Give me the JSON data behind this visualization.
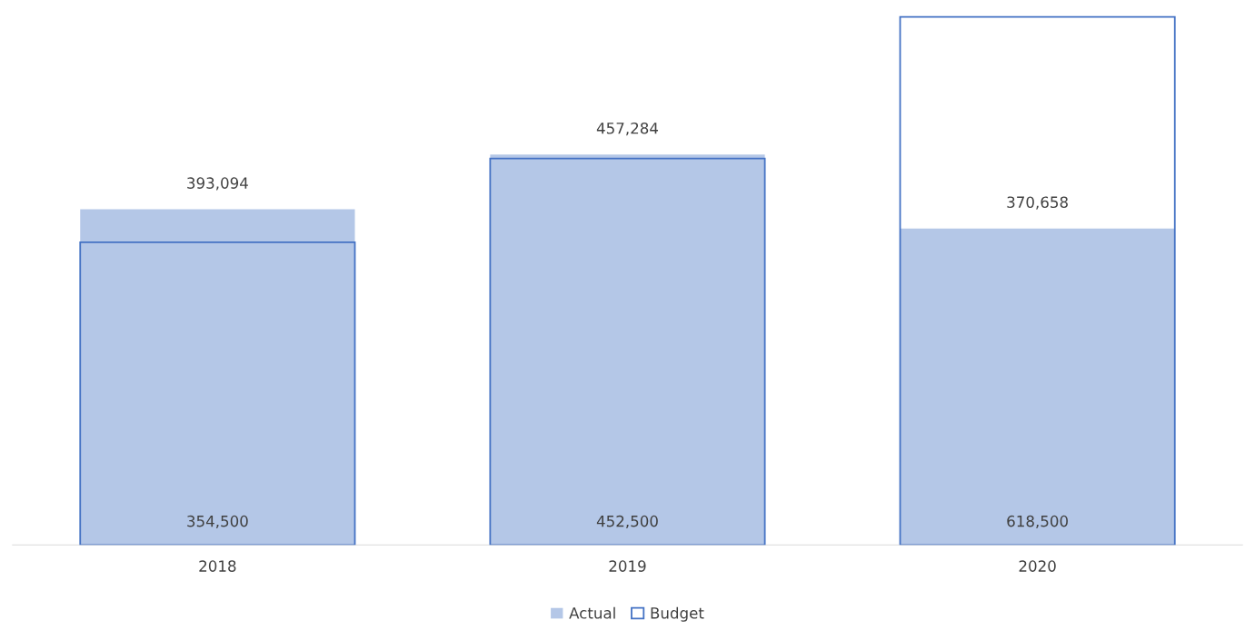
{
  "chart_data": {
    "type": "bar",
    "categories": [
      "2018",
      "2019",
      "2020"
    ],
    "series": [
      {
        "name": "Actual",
        "color": "#b4c7e7",
        "values": [
          393094,
          457284,
          370658
        ],
        "value_labels": [
          "393,094",
          "457,284",
          "370,658"
        ]
      },
      {
        "name": "Budget",
        "color": "#4472c4",
        "values": [
          354500,
          452500,
          618500
        ],
        "value_labels": [
          "354,500",
          "452,500",
          "618,500"
        ]
      }
    ],
    "legend": "bottom",
    "grid": false
  }
}
